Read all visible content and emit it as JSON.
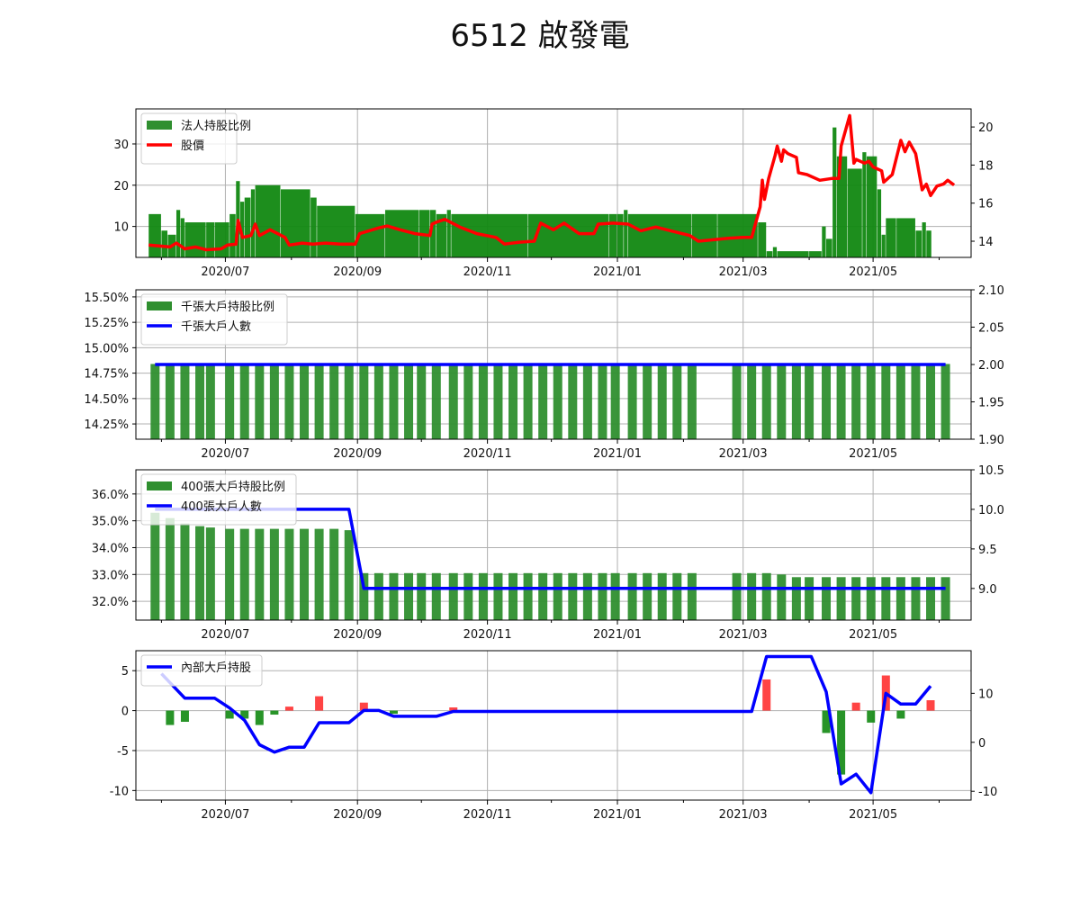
{
  "title": "6512 啟發電",
  "x_ticks": [
    "2020/07",
    "2020/09",
    "2020/11",
    "2021/01",
    "2021/03",
    "2021/05"
  ],
  "colors": {
    "bar_green": "#2f8f2f",
    "bar_green_dark": "#118811",
    "line_red": "#ff0000",
    "line_blue": "#0000ff",
    "bar_red": "#ff3030",
    "grid": "#b0b0b0"
  },
  "chart_data": [
    {
      "type": "bar+line",
      "legend": [
        "法人持股比例",
        "股價"
      ],
      "legend_position": "top-left",
      "grid": true,
      "y_left_ticks": [
        "10",
        "20",
        "30"
      ],
      "y_right_ticks": [
        "14",
        "16",
        "18",
        "20"
      ],
      "ylim_left": [
        2.5,
        38.5
      ],
      "ylim_right": [
        13.15,
        20.95
      ],
      "series_bar": {
        "name": "法人持股比例",
        "points": [
          [
            "2020-05-26",
            13
          ],
          [
            "2020-06-01",
            9
          ],
          [
            "2020-06-04",
            8
          ],
          [
            "2020-06-08",
            14
          ],
          [
            "2020-06-10",
            12
          ],
          [
            "2020-06-12",
            11
          ],
          [
            "2020-06-22",
            11
          ],
          [
            "2020-06-26",
            11
          ],
          [
            "2020-07-03",
            13
          ],
          [
            "2020-07-06",
            21
          ],
          [
            "2020-07-08",
            16
          ],
          [
            "2020-07-10",
            17
          ],
          [
            "2020-07-13",
            19
          ],
          [
            "2020-07-15",
            20
          ],
          [
            "2020-07-27",
            19
          ],
          [
            "2020-08-10",
            17
          ],
          [
            "2020-08-13",
            15
          ],
          [
            "2020-08-31",
            13
          ],
          [
            "2020-09-14",
            14
          ],
          [
            "2020-09-30",
            14
          ],
          [
            "2020-10-05",
            14
          ],
          [
            "2020-10-08",
            13
          ],
          [
            "2020-10-13",
            14
          ],
          [
            "2020-10-15",
            13
          ],
          [
            "2020-11-20",
            13
          ],
          [
            "2020-12-28",
            13
          ],
          [
            "2021-01-01",
            13
          ],
          [
            "2021-01-04",
            14
          ],
          [
            "2021-01-06",
            13
          ],
          [
            "2021-02-05",
            13
          ],
          [
            "2021-02-17",
            13
          ],
          [
            "2021-03-08",
            11
          ],
          [
            "2021-03-12",
            4
          ],
          [
            "2021-03-15",
            5
          ],
          [
            "2021-03-17",
            4
          ],
          [
            "2021-04-01",
            4
          ],
          [
            "2021-04-07",
            10
          ],
          [
            "2021-04-09",
            7
          ],
          [
            "2021-04-12",
            34
          ],
          [
            "2021-04-14",
            27
          ],
          [
            "2021-04-19",
            24
          ],
          [
            "2021-04-26",
            28
          ],
          [
            "2021-04-28",
            27
          ],
          [
            "2021-05-03",
            19
          ],
          [
            "2021-05-05",
            8
          ],
          [
            "2021-05-07",
            12
          ],
          [
            "2021-05-12",
            12
          ],
          [
            "2021-05-21",
            9
          ],
          [
            "2021-05-24",
            11
          ],
          [
            "2021-05-26",
            9
          ]
        ]
      },
      "series_line": {
        "name": "股價",
        "points": [
          [
            "2020-05-26",
            13.8
          ],
          [
            "2020-06-05",
            13.7
          ],
          [
            "2020-06-08",
            13.9
          ],
          [
            "2020-06-12",
            13.6
          ],
          [
            "2020-06-17",
            13.7
          ],
          [
            "2020-06-22",
            13.55
          ],
          [
            "2020-06-29",
            13.6
          ],
          [
            "2020-07-02",
            13.8
          ],
          [
            "2020-07-06",
            13.85
          ],
          [
            "2020-07-07",
            15.1
          ],
          [
            "2020-07-09",
            14.2
          ],
          [
            "2020-07-13",
            14.3
          ],
          [
            "2020-07-15",
            14.9
          ],
          [
            "2020-07-17",
            14.3
          ],
          [
            "2020-07-22",
            14.6
          ],
          [
            "2020-07-29",
            14.2
          ],
          [
            "2020-07-31",
            13.8
          ],
          [
            "2020-08-06",
            13.9
          ],
          [
            "2020-08-11",
            13.85
          ],
          [
            "2020-08-17",
            13.9
          ],
          [
            "2020-08-24",
            13.85
          ],
          [
            "2020-08-31",
            13.85
          ],
          [
            "2020-09-02",
            14.4
          ],
          [
            "2020-09-11",
            14.7
          ],
          [
            "2020-09-15",
            14.8
          ],
          [
            "2020-09-21",
            14.6
          ],
          [
            "2020-09-28",
            14.4
          ],
          [
            "2020-10-05",
            14.3
          ],
          [
            "2020-10-06",
            14.9
          ],
          [
            "2020-10-08",
            15.0
          ],
          [
            "2020-10-12",
            15.15
          ],
          [
            "2020-10-19",
            14.75
          ],
          [
            "2020-10-27",
            14.4
          ],
          [
            "2020-11-05",
            14.2
          ],
          [
            "2020-11-09",
            13.85
          ],
          [
            "2020-11-16",
            13.95
          ],
          [
            "2020-11-23",
            14.0
          ],
          [
            "2020-11-26",
            14.95
          ],
          [
            "2020-12-02",
            14.6
          ],
          [
            "2020-12-07",
            14.95
          ],
          [
            "2020-12-14",
            14.4
          ],
          [
            "2020-12-21",
            14.4
          ],
          [
            "2020-12-23",
            14.9
          ],
          [
            "2020-12-30",
            14.95
          ],
          [
            "2021-01-06",
            14.9
          ],
          [
            "2021-01-12",
            14.55
          ],
          [
            "2021-01-19",
            14.75
          ],
          [
            "2021-01-26",
            14.55
          ],
          [
            "2021-02-04",
            14.3
          ],
          [
            "2021-02-08",
            14.0
          ],
          [
            "2021-02-22",
            14.15
          ],
          [
            "2021-03-01",
            14.2
          ],
          [
            "2021-03-05",
            14.2
          ],
          [
            "2021-03-09",
            15.8
          ],
          [
            "2021-03-10",
            17.2
          ],
          [
            "2021-03-11",
            16.2
          ],
          [
            "2021-03-13",
            17.3
          ],
          [
            "2021-03-16",
            18.5
          ],
          [
            "2021-03-17",
            19.0
          ],
          [
            "2021-03-19",
            18.2
          ],
          [
            "2021-03-20",
            18.8
          ],
          [
            "2021-03-22",
            18.6
          ],
          [
            "2021-03-26",
            18.4
          ],
          [
            "2021-03-27",
            17.6
          ],
          [
            "2021-03-31",
            17.5
          ],
          [
            "2021-04-06",
            17.2
          ],
          [
            "2021-04-12",
            17.3
          ],
          [
            "2021-04-15",
            17.3
          ],
          [
            "2021-04-16",
            19.0
          ],
          [
            "2021-04-20",
            20.6
          ],
          [
            "2021-04-22",
            18.1
          ],
          [
            "2021-04-23",
            18.3
          ],
          [
            "2021-04-27",
            18.1
          ],
          [
            "2021-04-29",
            18.2
          ],
          [
            "2021-05-01",
            17.9
          ],
          [
            "2021-05-05",
            17.7
          ],
          [
            "2021-05-06",
            17.1
          ],
          [
            "2021-05-10",
            17.5
          ],
          [
            "2021-05-14",
            19.3
          ],
          [
            "2021-05-16",
            18.7
          ],
          [
            "2021-05-18",
            19.2
          ],
          [
            "2021-05-21",
            18.6
          ],
          [
            "2021-05-24",
            16.7
          ],
          [
            "2021-05-26",
            17.0
          ],
          [
            "2021-05-28",
            16.4
          ],
          [
            "2021-05-31",
            16.9
          ],
          [
            "2021-06-03",
            17.0
          ],
          [
            "2021-06-05",
            17.2
          ],
          [
            "2021-06-08",
            16.95
          ]
        ]
      }
    },
    {
      "type": "bar+line",
      "legend": [
        "千張大戶持股比例",
        "千張大戶人數"
      ],
      "legend_position": "top-left",
      "grid": true,
      "y_left_ticks": [
        "14.25%",
        "14.50%",
        "14.75%",
        "15.00%",
        "15.25%",
        "15.50%"
      ],
      "y_right_ticks": [
        "1.90",
        "1.95",
        "2.00",
        "2.05",
        "2.10"
      ],
      "ylim_left": [
        14.1,
        15.57
      ],
      "ylim_right": [
        1.9,
        2.1
      ],
      "bar_value_percent": 14.84,
      "line_value": 2.0
    },
    {
      "type": "bar+line",
      "legend": [
        "400張大戶持股比例",
        "400張大戶人數"
      ],
      "legend_position": "top-left",
      "grid": true,
      "y_left_ticks": [
        "32.0%",
        "33.0%",
        "34.0%",
        "35.0%",
        "36.0%"
      ],
      "y_right_ticks": [
        "9.0",
        "9.5",
        "10.0",
        "10.5"
      ],
      "ylim_left": [
        31.3,
        36.9
      ],
      "ylim_right": [
        8.6,
        10.5
      ],
      "series_bar": {
        "name": "400張大戶持股比例",
        "points": [
          [
            "2020-05-29",
            35.3
          ],
          [
            "2020-06-05",
            35.1
          ],
          [
            "2020-06-12",
            34.9
          ],
          [
            "2020-06-19",
            34.8
          ],
          [
            "2020-06-24",
            34.75
          ],
          [
            "2020-07-03",
            34.7
          ],
          [
            "2020-07-10",
            34.7
          ],
          [
            "2020-07-17",
            34.7
          ],
          [
            "2020-07-24",
            34.7
          ],
          [
            "2020-07-31",
            34.7
          ],
          [
            "2020-08-07",
            34.7
          ],
          [
            "2020-08-14",
            34.7
          ],
          [
            "2020-08-21",
            34.7
          ],
          [
            "2020-08-28",
            34.65
          ],
          [
            "2020-09-04",
            33.05
          ],
          [
            "2020-09-11",
            33.05
          ],
          [
            "2020-09-18",
            33.05
          ],
          [
            "2020-09-25",
            33.05
          ],
          [
            "2020-10-01",
            33.05
          ],
          [
            "2020-10-08",
            33.05
          ],
          [
            "2020-10-16",
            33.05
          ],
          [
            "2020-10-23",
            33.05
          ],
          [
            "2020-10-30",
            33.05
          ],
          [
            "2020-11-06",
            33.05
          ],
          [
            "2020-11-13",
            33.05
          ],
          [
            "2020-11-20",
            33.05
          ],
          [
            "2020-11-27",
            33.05
          ],
          [
            "2020-12-04",
            33.05
          ],
          [
            "2020-12-11",
            33.05
          ],
          [
            "2020-12-18",
            33.05
          ],
          [
            "2020-12-25",
            33.05
          ],
          [
            "2020-12-31",
            33.05
          ],
          [
            "2021-01-08",
            33.05
          ],
          [
            "2021-01-15",
            33.05
          ],
          [
            "2021-01-22",
            33.05
          ],
          [
            "2021-01-29",
            33.05
          ],
          [
            "2021-02-05",
            33.05
          ],
          [
            "2021-02-26",
            33.05
          ],
          [
            "2021-03-05",
            33.05
          ],
          [
            "2021-03-12",
            33.05
          ],
          [
            "2021-03-19",
            33.0
          ],
          [
            "2021-03-26",
            32.9
          ],
          [
            "2021-04-01",
            32.9
          ],
          [
            "2021-04-09",
            32.9
          ],
          [
            "2021-04-16",
            32.9
          ],
          [
            "2021-04-23",
            32.9
          ],
          [
            "2021-04-30",
            32.9
          ],
          [
            "2021-05-07",
            32.9
          ],
          [
            "2021-05-14",
            32.9
          ],
          [
            "2021-05-21",
            32.9
          ],
          [
            "2021-05-28",
            32.9
          ],
          [
            "2021-06-04",
            32.9
          ]
        ]
      },
      "series_line": {
        "name": "400張大戶人數",
        "points": [
          [
            "2020-05-29",
            10
          ],
          [
            "2020-08-28",
            10
          ],
          [
            "2020-09-04",
            9
          ],
          [
            "2021-06-04",
            9
          ]
        ]
      }
    },
    {
      "type": "bar+line",
      "legend": [
        "內部大戶持股"
      ],
      "legend_position": "top-left",
      "grid": true,
      "y_left_ticks": [
        "-10",
        "-5",
        "0",
        "5"
      ],
      "y_right_ticks": [
        "-10",
        "0",
        "10"
      ],
      "ylim_left": [
        -11.2,
        7.5
      ],
      "ylim_right": [
        -11.8,
        18.7
      ],
      "series_bar": {
        "points": [
          [
            "2020-06-05",
            -1.8
          ],
          [
            "2020-06-12",
            -1.4
          ],
          [
            "2020-07-03",
            -1.0
          ],
          [
            "2020-07-10",
            -1.0
          ],
          [
            "2020-07-17",
            -1.8
          ],
          [
            "2020-07-24",
            -0.5
          ],
          [
            "2020-07-31",
            0.5
          ],
          [
            "2020-08-14",
            1.8
          ],
          [
            "2020-09-04",
            1.0
          ],
          [
            "2020-09-18",
            -0.4
          ],
          [
            "2020-10-16",
            0.4
          ],
          [
            "2021-03-12",
            3.9
          ],
          [
            "2021-04-09",
            -2.8
          ],
          [
            "2021-04-16",
            -8.0
          ],
          [
            "2021-04-23",
            1.0
          ],
          [
            "2021-04-30",
            -1.5
          ],
          [
            "2021-05-07",
            4.4
          ],
          [
            "2021-05-14",
            -1.0
          ],
          [
            "2021-05-28",
            1.3
          ]
        ]
      },
      "series_line": {
        "name": "內部大戶持股",
        "points": [
          [
            "2020-06-01",
            14
          ],
          [
            "2020-06-12",
            9
          ],
          [
            "2020-06-26",
            9
          ],
          [
            "2020-07-03",
            7
          ],
          [
            "2020-07-10",
            4.5
          ],
          [
            "2020-07-17",
            -0.5
          ],
          [
            "2020-07-24",
            -2
          ],
          [
            "2020-07-31",
            -1
          ],
          [
            "2020-08-07",
            -1
          ],
          [
            "2020-08-14",
            4
          ],
          [
            "2020-08-28",
            4
          ],
          [
            "2020-09-04",
            6.5
          ],
          [
            "2020-09-11",
            6.5
          ],
          [
            "2020-09-18",
            5.3
          ],
          [
            "2020-10-08",
            5.3
          ],
          [
            "2020-10-16",
            6.3
          ],
          [
            "2021-03-05",
            6.3
          ],
          [
            "2021-03-12",
            17.5
          ],
          [
            "2021-04-02",
            17.5
          ],
          [
            "2021-04-09",
            10.3
          ],
          [
            "2021-04-16",
            -8.5
          ],
          [
            "2021-04-23",
            -6.5
          ],
          [
            "2021-04-30",
            -10.3
          ],
          [
            "2021-05-07",
            10
          ],
          [
            "2021-05-14",
            7.8
          ],
          [
            "2021-05-21",
            7.8
          ],
          [
            "2021-05-28",
            11.5
          ]
        ]
      }
    }
  ]
}
